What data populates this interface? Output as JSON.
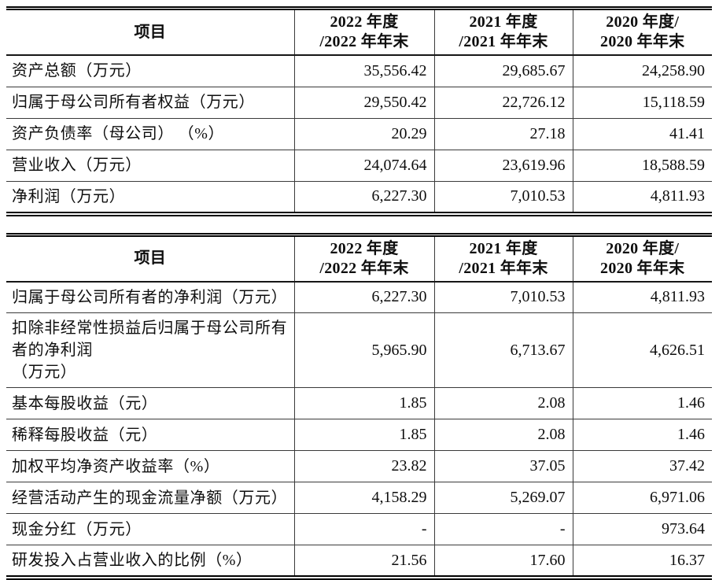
{
  "table1": {
    "header": {
      "item": "项目",
      "col2022": "2022 年度\n/2022 年年末",
      "col2021": "2021 年度\n/2021 年年末",
      "col2020": "2020 年度/\n2020 年年末"
    },
    "rows": [
      {
        "label": "资产总额（万元）",
        "v1": "35,556.42",
        "v2": "29,685.67",
        "v3": "24,258.90"
      },
      {
        "label": "归属于母公司所有者权益（万元）",
        "v1": "29,550.42",
        "v2": "22,726.12",
        "v3": "15,118.59"
      },
      {
        "label": "资产负债率（母公司） （%）",
        "v1": "20.29",
        "v2": "27.18",
        "v3": "41.41"
      },
      {
        "label": "营业收入（万元）",
        "v1": "24,074.64",
        "v2": "23,619.96",
        "v3": "18,588.59"
      },
      {
        "label": "净利润（万元）",
        "v1": "6,227.30",
        "v2": "7,010.53",
        "v3": "4,811.93"
      }
    ]
  },
  "table2": {
    "header": {
      "item": "项目",
      "col2022": "2022 年度\n/2022 年年末",
      "col2021": "2021 年度\n/2021 年年末",
      "col2020": "2020 年度/\n2020 年年末"
    },
    "rows": [
      {
        "label": "归属于母公司所有者的净利润（万元）",
        "v1": "6,227.30",
        "v2": "7,010.53",
        "v3": "4,811.93"
      },
      {
        "label": "扣除非经常性损益后归属于母公司所有者的净利润\n（万元）",
        "v1": "5,965.90",
        "v2": "6,713.67",
        "v3": "4,626.51"
      },
      {
        "label": "基本每股收益（元）",
        "v1": "1.85",
        "v2": "2.08",
        "v3": "1.46"
      },
      {
        "label": "稀释每股收益（元）",
        "v1": "1.85",
        "v2": "2.08",
        "v3": "1.46"
      },
      {
        "label": "加权平均净资产收益率（%）",
        "v1": "23.82",
        "v2": "37.05",
        "v3": "37.42"
      },
      {
        "label": "经营活动产生的现金流量净额（万元）",
        "v1": "4,158.29",
        "v2": "5,269.07",
        "v3": "6,971.06"
      },
      {
        "label": "现金分红（万元）",
        "v1": "-",
        "v2": "-",
        "v3": "973.64"
      },
      {
        "label": "研发投入占营业收入的比例（%）",
        "v1": "21.56",
        "v2": "17.60",
        "v3": "16.37"
      }
    ]
  }
}
